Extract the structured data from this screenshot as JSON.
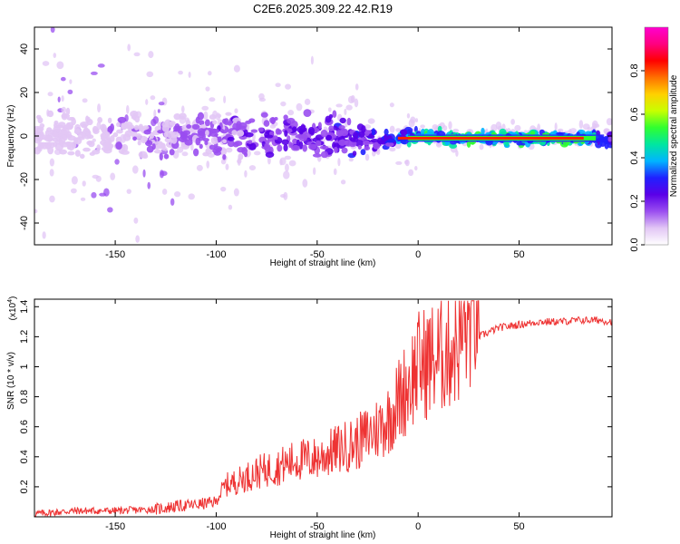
{
  "title": "C2E6.2025.309.22.42.R19",
  "chart_data": [
    {
      "type": "heatmap",
      "name": "spectrogram",
      "xlabel": "Height of straight line (km)",
      "ylabel": "Frequency (Hz)",
      "xlim": [
        -190,
        96
      ],
      "ylim": [
        -50,
        50
      ],
      "xticks": [
        -150,
        -100,
        -50,
        0,
        50
      ],
      "yticks": [
        -40,
        -20,
        0,
        20,
        40
      ],
      "colorbar": {
        "label": "Normalized spectral amplitude",
        "range": [
          0,
          1
        ],
        "ticks": [
          0.0,
          0.2,
          0.4,
          0.6,
          0.8
        ],
        "colors": [
          "#ffffff",
          "#e2c6f5",
          "#9a4ef0",
          "#5a00e8",
          "#2020ff",
          "#00b4ff",
          "#00e6a0",
          "#30ff30",
          "#c8ff00",
          "#ffd000",
          "#ff7000",
          "#ff0000",
          "#ff0080",
          "#ff00d0"
        ]
      },
      "ridge": {
        "description": "narrow line near 0 Hz, broad and noisy at low heights, sharp and strong above 0 km",
        "x": [
          -190,
          -150,
          -100,
          -50,
          -20,
          0,
          20,
          50,
          80,
          96
        ],
        "center_hz": [
          0,
          0,
          1,
          0,
          -2,
          0,
          -1,
          -1,
          -1,
          -2
        ],
        "amplitude": [
          0.15,
          0.18,
          0.3,
          0.4,
          0.45,
          0.8,
          0.85,
          0.85,
          0.85,
          0.5
        ]
      }
    },
    {
      "type": "line",
      "name": "snr",
      "xlabel": "Height of straight line (km)",
      "ylabel": "SNR (10 * v/v)",
      "y_multiplier": "(x10",
      "y_multiplier_exp": "4",
      "y_multiplier_close": ")",
      "xlim": [
        -190,
        96
      ],
      "ylim": [
        0,
        1.45
      ],
      "xticks": [
        -150,
        -100,
        -50,
        0,
        50
      ],
      "yticks": [
        0.2,
        0.4,
        0.6,
        0.8,
        1.0,
        1.2,
        1.4
      ],
      "color": "#ee3333",
      "series": [
        {
          "name": "SNR",
          "x": [
            -190,
            -170,
            -150,
            -130,
            -120,
            -110,
            -100,
            -95,
            -90,
            -80,
            -70,
            -60,
            -50,
            -40,
            -30,
            -20,
            -15,
            -10,
            -5,
            0,
            5,
            10,
            15,
            20,
            25,
            30,
            40,
            50,
            60,
            70,
            80,
            90,
            96
          ],
          "y": [
            0.02,
            0.04,
            0.04,
            0.05,
            0.07,
            0.08,
            0.1,
            0.18,
            0.2,
            0.25,
            0.28,
            0.32,
            0.33,
            0.38,
            0.42,
            0.5,
            0.55,
            0.65,
            0.75,
            0.85,
            0.88,
            0.9,
            0.95,
            1.0,
            1.1,
            1.2,
            1.26,
            1.28,
            1.3,
            1.3,
            1.31,
            1.31,
            1.3
          ]
        }
      ]
    }
  ]
}
